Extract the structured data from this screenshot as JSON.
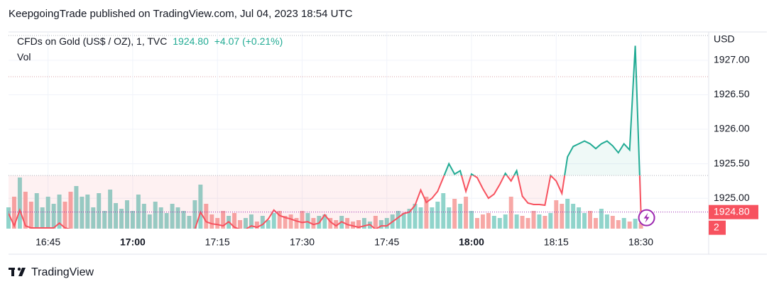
{
  "chart_data": {
    "type": "baseline",
    "title": "KeepgoingTrade published on TradingView.com, Jul 04, 2023 18:54 UTC",
    "last_price_label": "1924.80",
    "change_label": "+4.07 (+0.21%)",
    "axis_unit": "USD",
    "volume_scale_label": "2",
    "footer": "TradingView",
    "baseline": 1925.33,
    "grid": true,
    "up_color": "#22ab94",
    "down_color": "#f7525f",
    "volume_up_color": "#90d4cb",
    "volume_down_color": "#f7a8a6",
    "xlim": [
      "16:38",
      "18:42"
    ],
    "xticks": [
      "16:45",
      "17:00",
      "17:15",
      "17:30",
      "17:45",
      "18:00",
      "18:15",
      "18:30"
    ],
    "ylim": [
      1924.56,
      1927.41
    ],
    "yticks": [
      {
        "value": 1925,
        "label": "1925.00"
      },
      {
        "value": 1925.5,
        "label": "1925.50"
      },
      {
        "value": 1926,
        "label": "1926.00"
      },
      {
        "value": 1926.5,
        "label": "1926.50"
      },
      {
        "value": 1927,
        "label": "1927.00"
      }
    ],
    "x": [
      "16:38",
      "16:39",
      "16:40",
      "16:41",
      "16:42",
      "16:43",
      "16:44",
      "16:45",
      "16:46",
      "16:47",
      "16:48",
      "16:49",
      "16:50",
      "16:51",
      "16:52",
      "16:53",
      "16:54",
      "16:55",
      "16:56",
      "16:57",
      "16:58",
      "16:59",
      "17:00",
      "17:01",
      "17:02",
      "17:03",
      "17:04",
      "17:05",
      "17:06",
      "17:07",
      "17:08",
      "17:09",
      "17:10",
      "17:11",
      "17:12",
      "17:13",
      "17:14",
      "17:15",
      "17:16",
      "17:17",
      "17:18",
      "17:19",
      "17:20",
      "17:21",
      "17:22",
      "17:23",
      "17:24",
      "17:25",
      "17:26",
      "17:27",
      "17:28",
      "17:29",
      "17:30",
      "17:31",
      "17:32",
      "17:33",
      "17:34",
      "17:35",
      "17:36",
      "17:37",
      "17:38",
      "17:39",
      "17:40",
      "17:41",
      "17:42",
      "17:43",
      "17:44",
      "17:45",
      "17:46",
      "17:47",
      "17:48",
      "17:49",
      "17:50",
      "17:51",
      "17:52",
      "17:53",
      "17:54",
      "17:55",
      "17:56",
      "17:57",
      "17:58",
      "17:59",
      "18:00",
      "18:01",
      "18:02",
      "18:03",
      "18:04",
      "18:05",
      "18:06",
      "18:07",
      "18:08",
      "18:09",
      "18:10",
      "18:11",
      "18:12",
      "18:13",
      "18:14",
      "18:15",
      "18:16",
      "18:17",
      "18:18",
      "18:19",
      "18:20",
      "18:21",
      "18:22",
      "18:23",
      "18:24",
      "18:25",
      "18:26",
      "18:27",
      "18:28",
      "18:29",
      "18:30"
    ],
    "series": [
      {
        "name": "CFDs on Gold (US$ / OZ), 1, TVC",
        "values": [
          1924.78,
          1924.6,
          1924.83,
          1924.6,
          1924.57,
          1924.57,
          1924.57,
          1924.57,
          1924.57,
          1924.64,
          1924.57,
          1924.55,
          1924.55,
          1924.55,
          1924.55,
          1924.55,
          1924.55,
          1924.55,
          1924.55,
          1924.55,
          1924.55,
          1924.55,
          1924.55,
          1924.55,
          1924.55,
          1924.55,
          1924.55,
          1924.55,
          1924.55,
          1924.55,
          1924.55,
          1924.55,
          1924.55,
          1924.55,
          1924.8,
          1924.66,
          1924.63,
          1924.62,
          1924.6,
          1924.66,
          1924.58,
          1924.55,
          1924.55,
          1924.6,
          1924.58,
          1924.62,
          1924.7,
          1924.83,
          1924.75,
          1924.72,
          1924.7,
          1924.67,
          1924.65,
          1924.66,
          1924.62,
          1924.64,
          1924.76,
          1924.66,
          1924.6,
          1924.66,
          1924.62,
          1924.6,
          1924.58,
          1924.6,
          1924.62,
          1924.55,
          1924.6,
          1924.6,
          1924.66,
          1924.72,
          1924.78,
          1924.8,
          1924.9,
          1925.12,
          1924.94,
          1925.0,
          1925.1,
          1925.3,
          1925.5,
          1925.35,
          1925.4,
          1925.1,
          1925.35,
          1925.3,
          1925.14,
          1925.0,
          1925.06,
          1925.2,
          1925.36,
          1925.25,
          1925.4,
          1925.03,
          1924.93,
          1924.91,
          1924.91,
          1924.9,
          1925.33,
          1925.25,
          1925.07,
          1925.6,
          1925.75,
          1925.79,
          1925.83,
          1925.79,
          1925.72,
          1925.79,
          1925.83,
          1925.76,
          1925.66,
          1925.79,
          1925.7,
          1927.21,
          1924.8
        ]
      },
      {
        "name": "Vol",
        "type": "volume",
        "values": [
          30,
          45,
          72,
          52,
          38,
          50,
          30,
          45,
          35,
          48,
          38,
          52,
          60,
          45,
          48,
          30,
          50,
          25,
          55,
          36,
          28,
          40,
          25,
          48,
          35,
          20,
          38,
          30,
          22,
          35,
          30,
          25,
          18,
          40,
          62,
          35,
          20,
          15,
          25,
          18,
          22,
          12,
          15,
          20,
          10,
          18,
          12,
          22,
          25,
          18,
          20,
          15,
          25,
          22,
          15,
          18,
          20,
          15,
          12,
          18,
          15,
          10,
          12,
          15,
          10,
          18,
          12,
          15,
          20,
          25,
          22,
          28,
          35,
          30,
          45,
          30,
          38,
          50,
          30,
          42,
          35,
          45,
          25,
          15,
          20,
          22,
          18,
          15,
          20,
          45,
          20,
          18,
          15,
          25,
          20,
          18,
          22,
          40,
          35,
          42,
          35,
          30,
          22,
          25,
          15,
          28,
          20,
          18,
          12,
          15,
          10,
          14,
          8
        ]
      }
    ]
  }
}
